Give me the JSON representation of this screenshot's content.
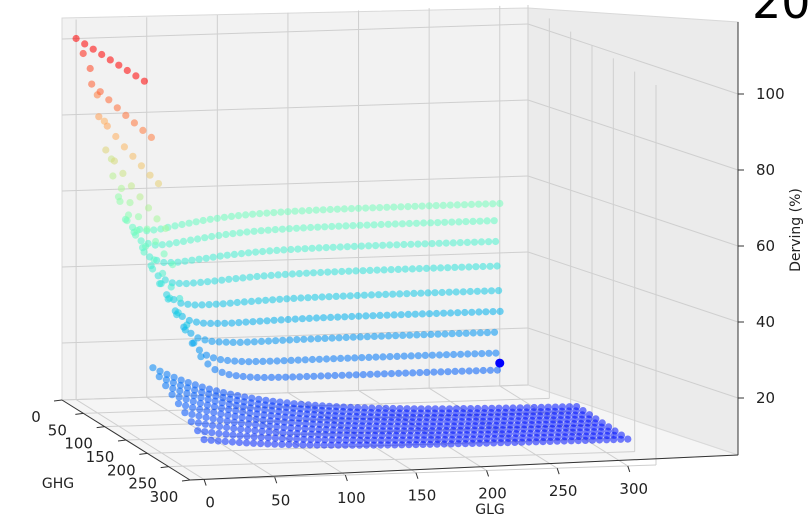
{
  "chart_data": {
    "type": "scatter",
    "projection": "3d",
    "title": "",
    "title_fragment": "20",
    "xlabel": "GLG",
    "ylabel": "GHG",
    "zlabel": "Derving (%)",
    "x_ticks": [
      "0",
      "50",
      "100",
      "150",
      "200",
      "250",
      "300"
    ],
    "y_ticks": [
      "0",
      "50",
      "100",
      "150",
      "200",
      "250",
      "300"
    ],
    "z_ticks": [
      "20",
      "40",
      "60",
      "80",
      "100"
    ],
    "xlim": [
      -10,
      320
    ],
    "ylim": [
      0,
      300
    ],
    "zlim": [
      5,
      105
    ],
    "grid": true,
    "colormap": "rainbow",
    "z_profile_ghg0": {
      "x": [
        0,
        10,
        20,
        30,
        40,
        50,
        60,
        80,
        100,
        150,
        200,
        250,
        300
      ],
      "z": [
        100,
        92,
        78,
        58,
        42,
        33,
        28,
        22,
        19,
        15,
        13,
        12,
        11
      ]
    },
    "row_plateaus": [
      {
        "ghg": 0,
        "z": 53
      },
      {
        "ghg": 20,
        "z": 50
      },
      {
        "ghg": 40,
        "z": 46
      },
      {
        "ghg": 60,
        "z": 41
      },
      {
        "ghg": 80,
        "z": 36
      },
      {
        "ghg": 100,
        "z": 32
      },
      {
        "ghg": 120,
        "z": 28
      },
      {
        "ghg": 140,
        "z": 24
      },
      {
        "ghg": 160,
        "z": 21
      }
    ],
    "endpoint": {
      "glg": 300,
      "ghg": 0,
      "z": 11
    }
  }
}
